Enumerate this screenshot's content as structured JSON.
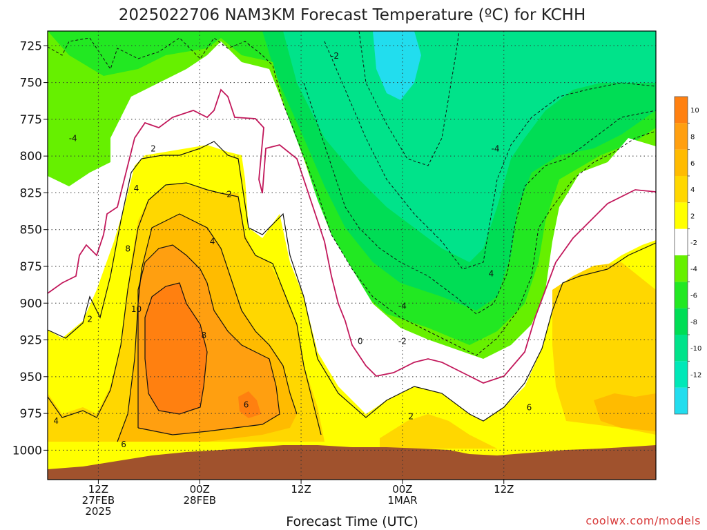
{
  "chart_data": {
    "type": "heatmap",
    "title": "2025022706 NAM3KM Forecast Temperature (ºC) for KCHH",
    "xlabel": "Forecast Time (UTC)",
    "ylabel": "",
    "y_scale": "pressure (inverted)",
    "ylim": [
      1020,
      715
    ],
    "y_ticks": [
      725,
      750,
      775,
      800,
      825,
      850,
      875,
      900,
      925,
      950,
      975,
      1000
    ],
    "xlim": [
      "2025-02-27T06Z",
      "2025-03-02T06Z"
    ],
    "x_ticks": [
      {
        "time": "2025-02-27T12Z",
        "lines": [
          "12Z",
          "27FEB",
          "2025"
        ]
      },
      {
        "time": "2025-02-28T00Z",
        "lines": [
          "00Z",
          "28FEB"
        ]
      },
      {
        "time": "2025-02-28T12Z",
        "lines": [
          "12Z"
        ]
      },
      {
        "time": "2025-03-01T00Z",
        "lines": [
          "00Z",
          "1MAR"
        ]
      },
      {
        "time": "2025-03-01T12Z",
        "lines": [
          "12Z"
        ]
      }
    ],
    "grid": true,
    "colorbar": {
      "placement": "right",
      "levels": [
        -14,
        -12,
        -10,
        -8,
        -6,
        -4,
        -2,
        2,
        4,
        6,
        8,
        10,
        12
      ],
      "tick_labels": [
        "10",
        "8",
        "6",
        "4",
        "2",
        "-2",
        "-4",
        "-6",
        "-8",
        "-10",
        "-12"
      ],
      "colors": [
        "#22ddee",
        "#00e8b8",
        "#00e38a",
        "#00dd55",
        "#22e822",
        "#66f000",
        "#ffffff",
        "#ffff00",
        "#ffd700",
        "#ffbb00",
        "#ff9f10",
        "#ff8010"
      ]
    },
    "contour_labels": [
      {
        "value": "-2",
        "time_h": 34,
        "p": 732
      },
      {
        "value": "-4",
        "time_h": 3,
        "p": 788
      },
      {
        "value": "2",
        "time_h": 12.5,
        "p": 795
      },
      {
        "value": "4",
        "time_h": 10.5,
        "p": 822
      },
      {
        "value": "2",
        "time_h": 5,
        "p": 911
      },
      {
        "value": "8",
        "time_h": 9.5,
        "p": 863
      },
      {
        "value": "10",
        "time_h": 10.5,
        "p": 904
      },
      {
        "value": "4",
        "time_h": 1,
        "p": 980
      },
      {
        "value": "6",
        "time_h": 9,
        "p": 996
      },
      {
        "value": "2",
        "time_h": 21.5,
        "p": 826
      },
      {
        "value": "4",
        "time_h": 19.5,
        "p": 858
      },
      {
        "value": "8",
        "time_h": 18.5,
        "p": 922
      },
      {
        "value": "6",
        "time_h": 23.5,
        "p": 969
      },
      {
        "value": "0",
        "time_h": 37,
        "p": 926
      },
      {
        "value": "-4",
        "time_h": 42,
        "p": 902
      },
      {
        "value": "-2",
        "time_h": 42,
        "p": 926
      },
      {
        "value": "2",
        "time_h": 43,
        "p": 977
      },
      {
        "value": "4",
        "time_h": 52.5,
        "p": 880
      },
      {
        "value": "6",
        "time_h": 57,
        "p": 971
      },
      {
        "value": "-4",
        "time_h": 53,
        "p": 795
      }
    ],
    "terrain_color": "#a0522d"
  },
  "credit": "coolwx.com/models"
}
